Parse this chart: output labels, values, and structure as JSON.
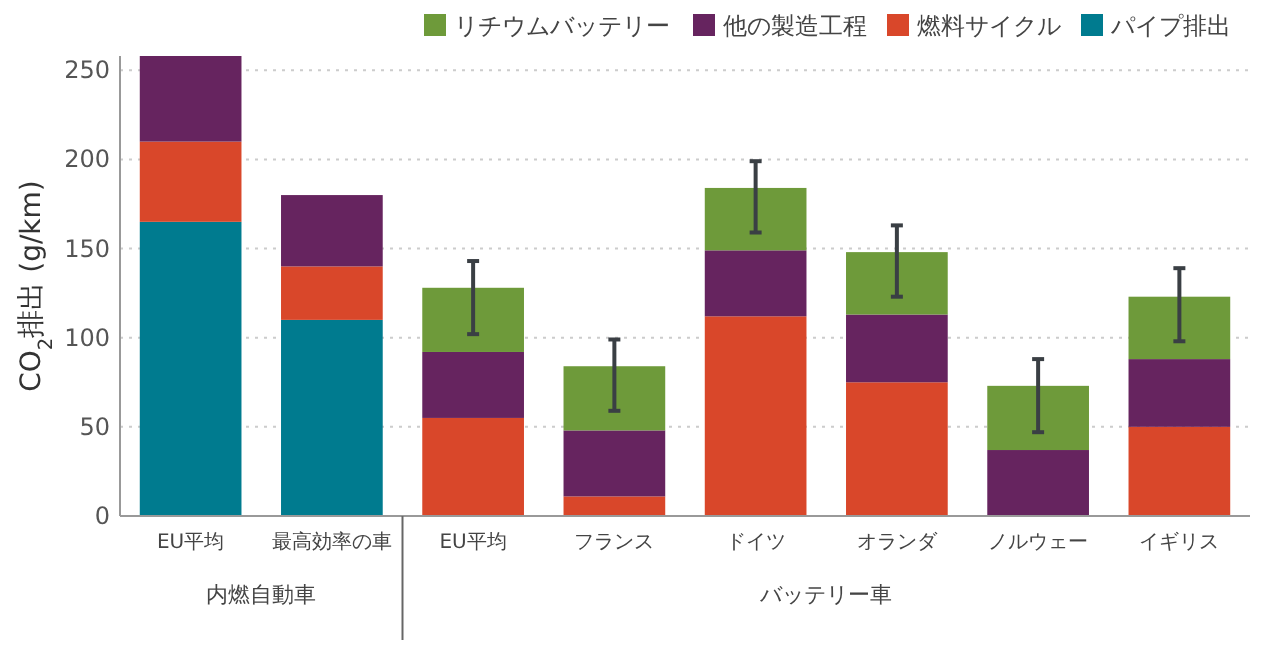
{
  "chart_data": {
    "type": "bar",
    "stacked": true,
    "ylabel": "CO$_{2}$排出 (g/km)",
    "categories": [
      "EU平均",
      "最高効率の車",
      "EU平均",
      "フランス",
      "ドイツ",
      "オランダ",
      "ノルウェー",
      "イギリス"
    ],
    "series": [
      {
        "name": "パイプ排出",
        "color": "#007b8f",
        "values": [
          165,
          110,
          0,
          0,
          0,
          0,
          0,
          0
        ]
      },
      {
        "name": "燃料サイクル",
        "color": "#d9472a",
        "values": [
          45,
          30,
          55,
          11,
          112,
          75,
          0,
          50
        ]
      },
      {
        "name": "他の製造工程",
        "color": "#66245f",
        "values": [
          48,
          40,
          37,
          37,
          37,
          38,
          37,
          38
        ]
      },
      {
        "name": "リチウムバッテリー",
        "color": "#6e9a3a",
        "values": [
          0,
          0,
          36,
          36,
          35,
          35,
          36,
          35
        ],
        "errors": [
          null,
          null,
          [
            102,
            143
          ],
          [
            59,
            99
          ],
          [
            159,
            199
          ],
          [
            123,
            163
          ],
          [
            47,
            88
          ],
          [
            98,
            139
          ]
        ]
      }
    ],
    "annotations": [
      "内燃自動車",
      "バッテリー車"
    ],
    "ylim": [
      0,
      258
    ],
    "yticks": [
      0,
      50,
      100,
      150,
      200,
      250
    ],
    "grid": "y",
    "legend": "top right"
  }
}
